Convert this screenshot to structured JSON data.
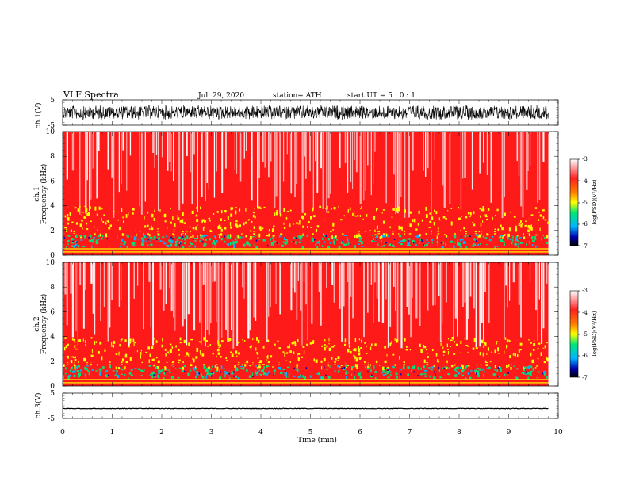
{
  "header": {
    "title": "VLF  Spectra",
    "date": "Jul.  29, 2020",
    "station": "station= ATH",
    "start": "start  UT  =    5  : 0   : 1"
  },
  "colorbar_labels": {
    "top": "-3",
    "t2": "-4",
    "t3": "-5",
    "t4": "-6",
    "bottom": "-7",
    "title": "log(PSD)(V²/Hz)"
  },
  "colors": {
    "high": "#ff1a1a",
    "mid": "#ffff00",
    "low": "#00e676",
    "lower": "#00b4ff",
    "lowest": "#0000b0",
    "white": "#ffffff"
  },
  "chart_data": [
    {
      "type": "line",
      "panel": "ch1-waveform",
      "ylabel": "ch.1(V)",
      "ylim": [
        -5,
        5
      ],
      "yticks": [
        "5",
        "-5"
      ],
      "xlim": [
        0,
        10
      ],
      "amplitude_approx": 3
    },
    {
      "type": "heatmap",
      "panel": "ch1-spectrogram",
      "ylabel_line1": "ch.1",
      "ylabel_line2": "Frequency  (kHz)",
      "ylim": [
        0,
        10
      ],
      "yticks": [
        "0",
        "2",
        "4",
        "6",
        "8",
        "10"
      ],
      "xlim": [
        0,
        10
      ],
      "data_end_min": 9.8,
      "colorbar_range": [
        -7,
        -3
      ]
    },
    {
      "type": "heatmap",
      "panel": "ch2-spectrogram",
      "ylabel_line1": "ch.2",
      "ylabel_line2": "Frequency  (kHz)",
      "ylim": [
        0,
        10
      ],
      "yticks": [
        "0",
        "2",
        "4",
        "6",
        "8",
        "10"
      ],
      "xlim": [
        0,
        10
      ],
      "data_end_min": 9.8,
      "colorbar_range": [
        -7,
        -3
      ]
    },
    {
      "type": "line",
      "panel": "ch3-waveform",
      "ylabel": "ch.3(V)",
      "ylim": [
        -5,
        5
      ],
      "yticks": [
        "5",
        "-5"
      ],
      "xlim": [
        0,
        10
      ],
      "baseline_approx": -1.1
    }
  ],
  "xaxis": {
    "label": "Time  (min)",
    "ticks": [
      "0",
      "1",
      "2",
      "3",
      "4",
      "5",
      "6",
      "7",
      "8",
      "9",
      "10"
    ]
  }
}
